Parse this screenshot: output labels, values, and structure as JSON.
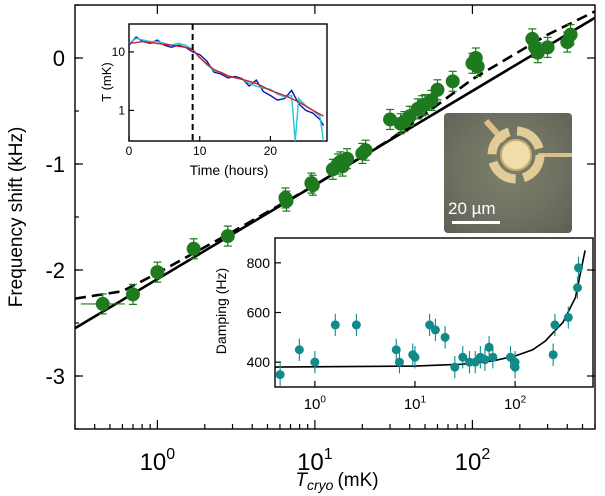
{
  "chart_data": [
    {
      "type": "scatter",
      "xlabel": "T",
      "xlabel_subscript": "cryo",
      "xlabel_unit": "(mK)",
      "ylabel": "Frequency shift (kHz)",
      "xscale": "log",
      "xlim": [
        0.3,
        600
      ],
      "ylim": [
        -3.5,
        0.5
      ],
      "yticks": [
        "-3",
        "-2",
        "-1",
        "0"
      ],
      "xticks": [
        {
          "base": "10",
          "exp": "0"
        },
        {
          "base": "10",
          "exp": "1"
        },
        {
          "base": "10",
          "exp": "2"
        }
      ],
      "colors": {
        "points": "#1f7a1f",
        "fit_solid": "#000000",
        "fit_dashed": "#000000"
      },
      "series": [
        {
          "x": [
            0.45,
            0.7,
            1.0,
            1.7,
            2.8,
            6.5,
            6.6,
            9.5,
            9.7,
            13,
            14,
            14.5,
            15,
            16,
            20,
            21,
            30,
            35,
            37,
            40,
            45,
            48,
            50,
            55,
            60,
            75,
            100,
            105,
            108,
            240,
            250,
            260,
            300,
            400,
            420
          ],
          "y": [
            -2.32,
            -2.23,
            -2.02,
            -1.8,
            -1.68,
            -1.32,
            -1.35,
            -1.18,
            -1.2,
            -1.05,
            -1.0,
            -0.98,
            -1.02,
            -0.95,
            -0.9,
            -0.87,
            -0.58,
            -0.62,
            -0.6,
            -0.55,
            -0.48,
            -0.45,
            -0.44,
            -0.4,
            -0.3,
            -0.22,
            -0.05,
            0.0,
            -0.08,
            0.18,
            0.1,
            0.05,
            0.1,
            0.15,
            0.22
          ]
        }
      ],
      "fits": [
        {
          "style": "solid",
          "x": [
            0.3,
            600
          ],
          "y": [
            -2.55,
            0.38
          ]
        },
        {
          "style": "dashed",
          "x": [
            0.3,
            0.6,
            1,
            3,
            10,
            30,
            100,
            300,
            600
          ],
          "y": [
            -2.27,
            -2.2,
            -2.03,
            -1.64,
            -1.2,
            -0.77,
            -0.2,
            0.22,
            0.44
          ]
        }
      ]
    },
    {
      "type": "line",
      "xlabel": "Time (hours)",
      "ylabel": "T (mK)",
      "yscale": "log",
      "xlim": [
        0,
        28
      ],
      "ylim": [
        0.3,
        30
      ],
      "xticks": [
        "0",
        "10",
        "20"
      ],
      "yticks": [
        "1",
        "10"
      ],
      "marker_x": 9,
      "series": [
        {
          "color": "#0a14b4",
          "x": [
            0,
            1,
            2,
            3,
            4,
            5,
            6,
            7,
            8,
            9,
            10,
            11,
            12,
            13,
            14,
            15,
            16,
            17,
            18,
            19,
            20,
            21,
            22,
            23,
            24,
            25,
            26,
            27,
            27.5
          ],
          "y": [
            13,
            18,
            15,
            14,
            16,
            13,
            12,
            13,
            12,
            10,
            9,
            7,
            4.5,
            4.2,
            3.6,
            3.8,
            3.5,
            2.6,
            3.3,
            2.1,
            1.8,
            1.5,
            1.6,
            2.2,
            1.3,
            1.0,
            0.9,
            0.7,
            0.55
          ]
        },
        {
          "color": "#21c7d6",
          "x": [
            0,
            1,
            2,
            3,
            4,
            5,
            6,
            7,
            8,
            9,
            10,
            11,
            12,
            13,
            14,
            15,
            16,
            17,
            18,
            19,
            20,
            21,
            22,
            23,
            23.5,
            24,
            25,
            26,
            27,
            27.5
          ],
          "y": [
            14,
            17,
            16,
            15,
            15,
            14,
            13,
            14,
            13,
            11,
            8,
            6,
            4.8,
            4.5,
            3.9,
            3.6,
            3.4,
            2.9,
            2.6,
            2.4,
            2.3,
            1.9,
            1.7,
            1.8,
            0.3,
            1.6,
            1.2,
            1.0,
            0.8,
            0.3
          ]
        },
        {
          "color": "#cc2222",
          "x": [
            0,
            2,
            4,
            6,
            8,
            9,
            10,
            12,
            14,
            16,
            18,
            20,
            22,
            24,
            26,
            27.5
          ],
          "y": [
            14,
            15,
            14,
            13,
            12,
            11,
            8,
            5,
            3.9,
            3.4,
            2.9,
            2.2,
            1.8,
            1.4,
            1.0,
            0.8
          ]
        }
      ]
    },
    {
      "type": "scatter",
      "xlabel": "",
      "ylabel": "Damping (Hz)",
      "xscale": "log",
      "xlim": [
        0.4,
        600
      ],
      "ylim": [
        300,
        900
      ],
      "xticks": [
        {
          "base": "10",
          "exp": "0"
        },
        {
          "base": "10",
          "exp": "1"
        },
        {
          "base": "10",
          "exp": "2"
        }
      ],
      "yticks": [
        "400",
        "600",
        "800"
      ],
      "colors": {
        "points": "#138a8a"
      },
      "series": [
        {
          "x": [
            0.45,
            0.7,
            1.0,
            1.6,
            2.6,
            6.5,
            7,
            9.5,
            10,
            14,
            16,
            20,
            25,
            30,
            35,
            40,
            45,
            50,
            55,
            60,
            90,
            100,
            100,
            240,
            250,
            340,
            420,
            430
          ],
          "y": [
            350,
            450,
            400,
            550,
            550,
            450,
            400,
            430,
            420,
            550,
            530,
            500,
            380,
            420,
            400,
            400,
            420,
            410,
            460,
            420,
            420,
            380,
            400,
            430,
            550,
            580,
            700,
            780
          ]
        }
      ],
      "fit": {
        "x": [
          0.4,
          10,
          30,
          60,
          100,
          150,
          200,
          300,
          400,
          500
        ],
        "y": [
          380,
          384,
          392,
          405,
          425,
          450,
          485,
          560,
          660,
          850
        ]
      }
    }
  ],
  "scale_bar": {
    "label": "20 µm"
  }
}
